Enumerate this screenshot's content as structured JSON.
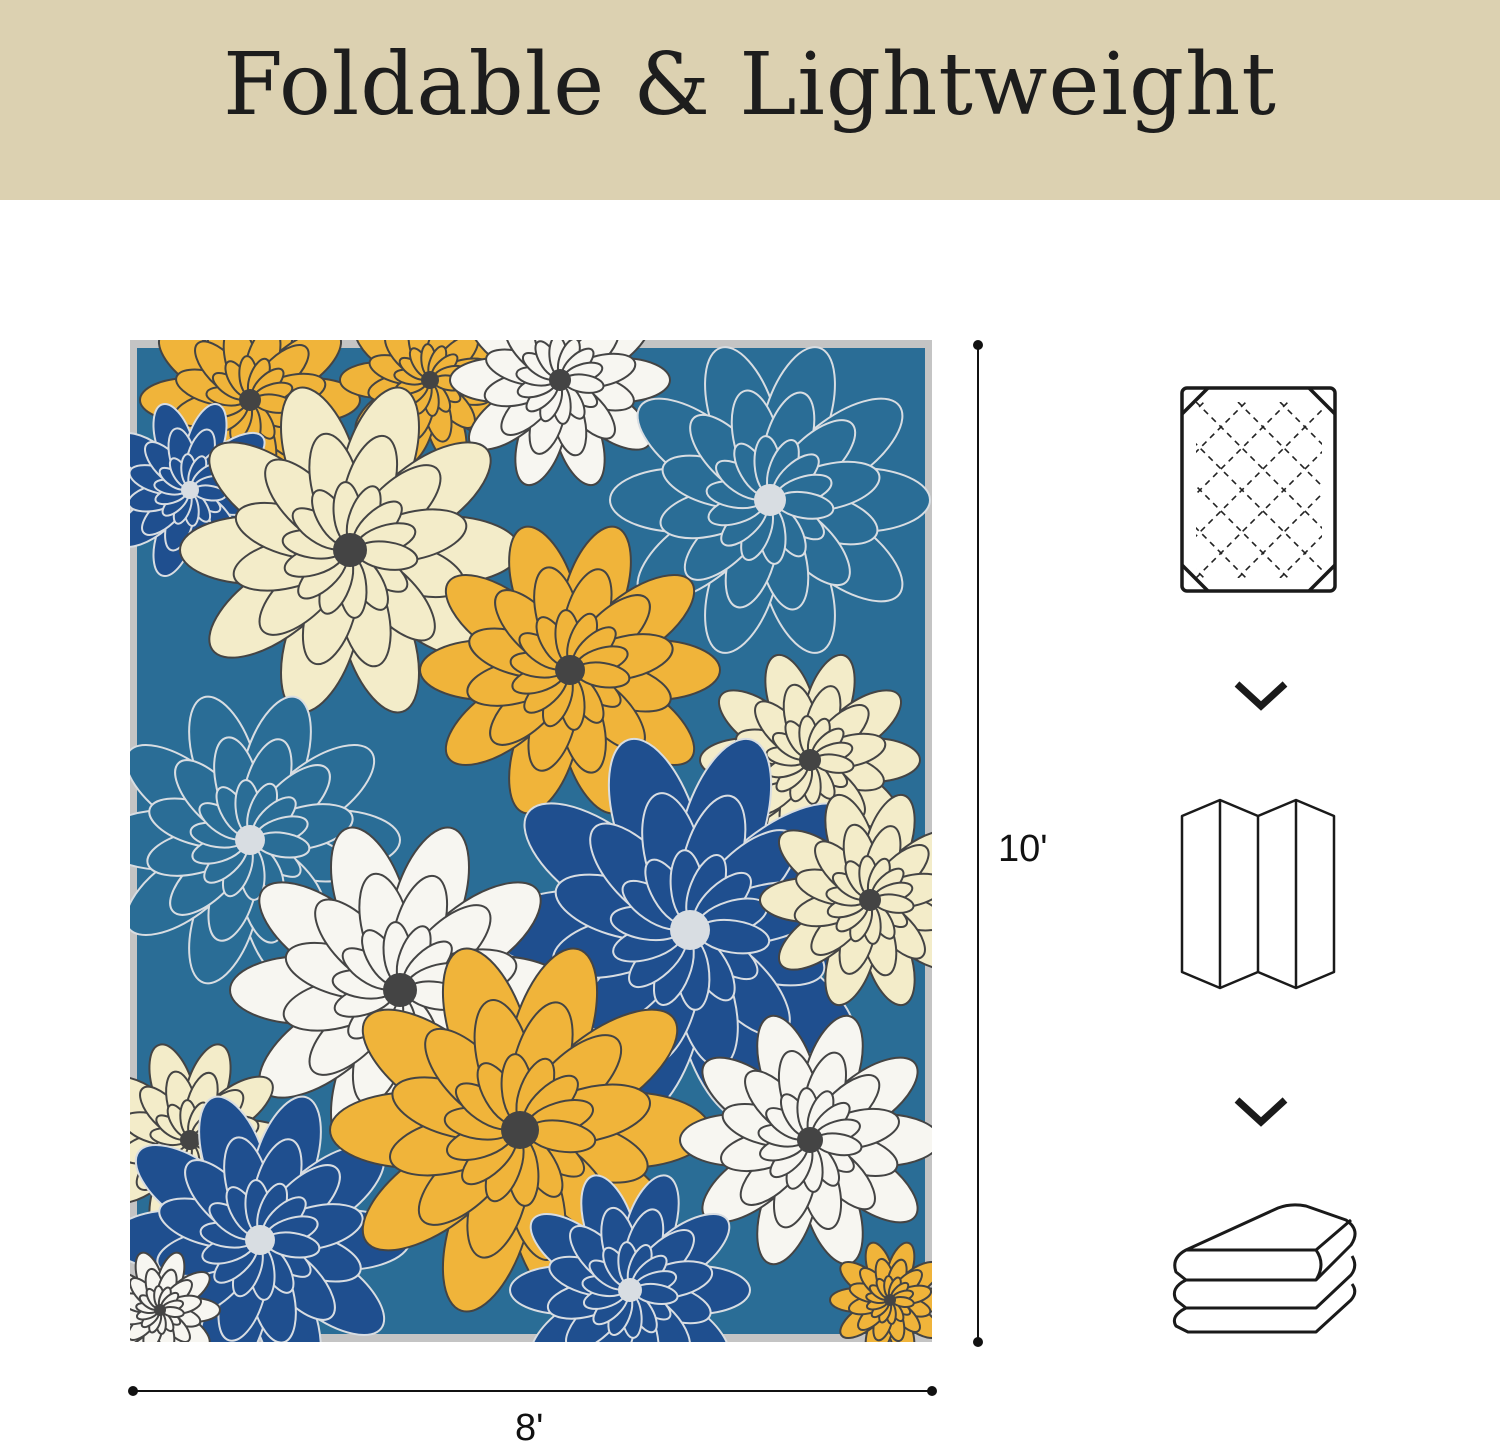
{
  "header": {
    "title": "Foldable & Lightweight",
    "background": "#dcd1b1"
  },
  "rug": {
    "pattern": "floral",
    "colors": {
      "navy": "#1f4f8f",
      "teal": "#2a6d96",
      "yellow": "#f0b43a",
      "cream": "#f3ecc9",
      "white": "#f7f6f1",
      "border": "#b9b9b9"
    }
  },
  "dimensions": {
    "height_label": "10'",
    "width_label": "8'"
  },
  "steps": [
    {
      "icon": "flat-rug-icon"
    },
    {
      "icon": "chevron-down-icon"
    },
    {
      "icon": "folded-screen-icon"
    },
    {
      "icon": "chevron-down-icon"
    },
    {
      "icon": "folded-towel-icon"
    }
  ]
}
